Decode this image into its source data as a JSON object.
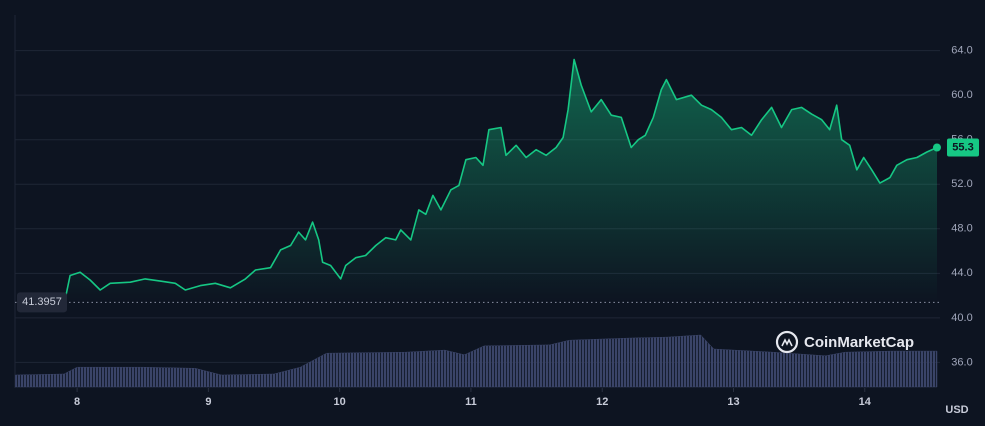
{
  "chart_data": {
    "type": "area",
    "brand": "CoinMarketCap",
    "currency": "USD",
    "baseline": 41.3957,
    "color": "#16c784",
    "xlim": [
      7.527,
      14.573
    ],
    "xticks": [
      8,
      9,
      10,
      11,
      12,
      13,
      14
    ],
    "ylim": [
      33.7,
      67.2
    ],
    "yticks": [
      {
        "value": 36,
        "label": "36.0"
      },
      {
        "value": 40,
        "label": "40.0"
      },
      {
        "value": 44,
        "label": "44.0"
      },
      {
        "value": 48,
        "label": "48.0"
      },
      {
        "value": 52,
        "label": "52.0"
      },
      {
        "value": 56,
        "label": "56.0"
      },
      {
        "value": 60,
        "label": "60.0"
      },
      {
        "value": 64,
        "label": "64.0"
      }
    ],
    "grid": true,
    "x": [
      7.908,
      7.947,
      8.023,
      8.099,
      8.176,
      8.252,
      8.405,
      8.519,
      8.634,
      8.748,
      8.824,
      8.939,
      9.053,
      9.168,
      9.282,
      9.359,
      9.473,
      9.55,
      9.626,
      9.687,
      9.74,
      9.794,
      9.84,
      9.87,
      9.931,
      10.008,
      10.046,
      10.122,
      10.198,
      10.275,
      10.351,
      10.427,
      10.466,
      10.542,
      10.603,
      10.656,
      10.71,
      10.771,
      10.847,
      10.908,
      10.962,
      11.038,
      11.092,
      11.137,
      11.229,
      11.267,
      11.344,
      11.42,
      11.496,
      11.573,
      11.649,
      11.702,
      11.74,
      11.786,
      11.84,
      11.916,
      11.992,
      12.069,
      12.145,
      12.221,
      12.275,
      12.328,
      12.389,
      12.45,
      12.489,
      12.565,
      12.679,
      12.756,
      12.832,
      12.908,
      12.985,
      13.061,
      13.137,
      13.214,
      13.29,
      13.366,
      13.443,
      13.519,
      13.595,
      13.672,
      13.733,
      13.786,
      13.824,
      13.885,
      13.939,
      13.992,
      14.053,
      14.115,
      14.191,
      14.244,
      14.321,
      14.397,
      14.473,
      14.55
    ],
    "values": [
      41.6,
      43.8,
      44.1,
      43.4,
      42.5,
      43.1,
      43.2,
      43.5,
      43.3,
      43.1,
      42.5,
      42.9,
      43.1,
      42.7,
      43.5,
      44.3,
      44.5,
      46.1,
      46.5,
      47.7,
      47.0,
      48.6,
      47.0,
      45.0,
      44.7,
      43.5,
      44.7,
      45.4,
      45.6,
      46.5,
      47.2,
      47.0,
      47.9,
      47.0,
      49.7,
      49.3,
      51.0,
      49.7,
      51.5,
      51.9,
      54.2,
      54.4,
      53.7,
      56.9,
      57.1,
      54.6,
      55.5,
      54.4,
      55.1,
      54.6,
      55.3,
      56.2,
      58.7,
      63.2,
      60.9,
      58.5,
      59.6,
      58.2,
      58.0,
      55.3,
      56.0,
      56.4,
      58.0,
      60.5,
      61.4,
      59.6,
      60.0,
      59.1,
      58.7,
      58.0,
      56.9,
      57.1,
      56.4,
      57.8,
      58.9,
      57.1,
      58.7,
      58.9,
      58.3,
      57.8,
      56.9,
      59.1,
      56.0,
      55.5,
      53.3,
      54.4,
      53.3,
      52.1,
      52.6,
      53.7,
      54.2,
      54.4,
      54.9,
      55.3
    ],
    "volume": {
      "color": "#3a4468",
      "ylim": [
        0,
        100
      ],
      "x": [
        7.53,
        7.9,
        8.0,
        8.5,
        8.9,
        9.1,
        9.5,
        9.7,
        9.9,
        10.5,
        10.8,
        10.95,
        11.1,
        11.6,
        11.75,
        12.2,
        12.5,
        12.75,
        12.85,
        13.3,
        13.7,
        13.85,
        14.2,
        14.55
      ],
      "values": [
        23,
        25,
        38,
        38,
        36,
        23,
        25,
        38,
        65,
        67,
        71,
        62,
        79,
        81,
        90,
        94,
        96,
        100,
        73,
        67,
        60,
        67,
        69,
        69
      ]
    }
  }
}
